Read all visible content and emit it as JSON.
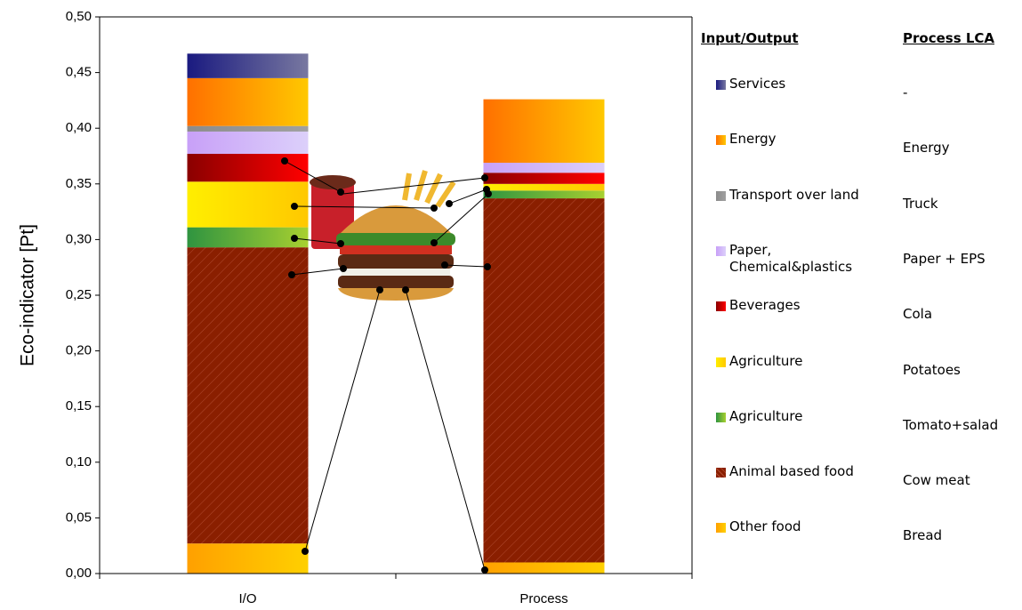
{
  "chart_data": {
    "type": "stacked_bar",
    "y_label": "Eco-indicator [Pt]",
    "legend_headers": [
      "Input/Output",
      "Process LCA"
    ],
    "categories": [
      "I/O",
      "Process"
    ],
    "ylim": [
      0,
      0.5
    ],
    "yticks": [
      {
        "value": 0,
        "label": "0,00"
      },
      {
        "value": 0.05,
        "label": "0,05"
      },
      {
        "value": 0.1,
        "label": "0,10"
      },
      {
        "value": 0.15,
        "label": "0,15"
      },
      {
        "value": 0.2,
        "label": "0,20"
      },
      {
        "value": 0.25,
        "label": "0,25"
      },
      {
        "value": 0.3,
        "label": "0,30"
      },
      {
        "value": 0.35,
        "label": "0,35"
      },
      {
        "value": 0.4,
        "label": "0,40"
      },
      {
        "value": 0.45,
        "label": "0,45"
      },
      {
        "value": 0.5,
        "label": "0,50"
      }
    ],
    "series": [
      {
        "name": "Other food",
        "process_name": "Bread",
        "color": "#ffa000",
        "gradient_to": "#ffd000",
        "values": [
          0.027,
          0.01
        ]
      },
      {
        "name": "Animal based food",
        "process_name": "Cow meat",
        "color": "#8a1f00",
        "pattern": "hatch",
        "values": [
          0.266,
          0.327
        ]
      },
      {
        "name": "Agriculture",
        "process_name": "Tomato+salad",
        "color": "#2f9440",
        "gradient_to": "#a8d030",
        "values": [
          0.018,
          0.007
        ]
      },
      {
        "name": "Agriculture",
        "process_name": "Potatoes",
        "color": "#ffee00",
        "gradient_to": "#ffc800",
        "values": [
          0.041,
          0.006
        ]
      },
      {
        "name": "Beverages",
        "process_name": "Cola",
        "color": "#8a0000",
        "gradient_to": "#ff0000",
        "values": [
          0.025,
          0.01
        ]
      },
      {
        "name": "Paper, Chemical&plastics",
        "process_name": "Paper + EPS",
        "color": "#c8a0f8",
        "gradient_to": "#dcd0fa",
        "values": [
          0.02,
          0.009
        ]
      },
      {
        "name": "Transport over land",
        "process_name": "Truck",
        "color": "#8c8c8c",
        "gradient_to": "#a0a0a0",
        "values": [
          0.005,
          0
        ]
      },
      {
        "name": "Energy",
        "process_name": "Energy",
        "color": "#ff7000",
        "gradient_to": "#ffc800",
        "values": [
          0.043,
          0.057
        ]
      },
      {
        "name": "Services",
        "process_name": "-",
        "color": "#1a1a80",
        "gradient_to": "#7878a0",
        "values": [
          0.022,
          0
        ]
      }
    ]
  }
}
